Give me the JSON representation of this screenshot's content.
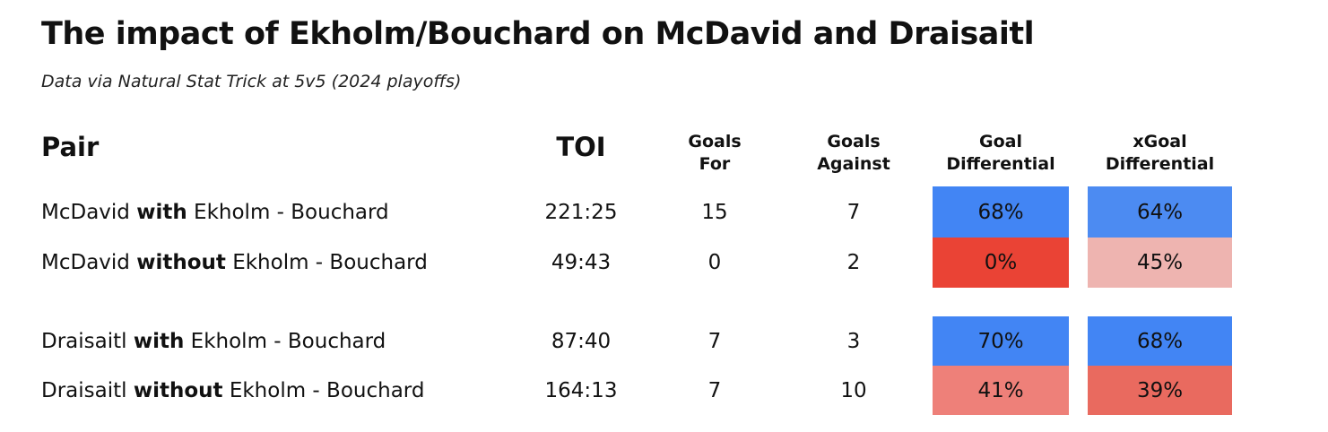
{
  "title": "The impact of Ekholm/Bouchard on McDavid and Draisaitl",
  "subtitle": "Data via Natural Stat Trick at 5v5 (2024 playoffs)",
  "chart_data": {
    "type": "table",
    "columns": [
      "Pair",
      "TOI",
      "Goals For",
      "Goals Against",
      "Goal Differential",
      "xGoal Differential"
    ],
    "column_headers": {
      "pair": "Pair",
      "toi": "TOI",
      "gf": [
        "Goals",
        "For"
      ],
      "ga": [
        "Goals",
        "Against"
      ],
      "gd": [
        "Goal",
        "Differential"
      ],
      "xgd": [
        "xGoal",
        "Differential"
      ]
    },
    "rows": [
      {
        "player": "McDavid",
        "mode": "with",
        "partner": "Ekholm - Bouchard",
        "toi": "221:25",
        "gf": "15",
        "ga": "7",
        "gd": "68%",
        "xgd": "64%",
        "gd_color": "#4285f4",
        "xgd_color": "#4c8bf2"
      },
      {
        "player": "McDavid",
        "mode": "without",
        "partner": "Ekholm - Bouchard",
        "toi": "49:43",
        "gf": "0",
        "ga": "2",
        "gd": "0%",
        "xgd": "45%",
        "gd_color": "#ea4335",
        "xgd_color": "#eeb4b0"
      },
      {
        "player": "Draisaitl",
        "mode": "with",
        "partner": "Ekholm - Bouchard",
        "toi": "87:40",
        "gf": "7",
        "ga": "3",
        "gd": "70%",
        "xgd": "68%",
        "gd_color": "#4285f4",
        "xgd_color": "#4285f4"
      },
      {
        "player": "Draisaitl",
        "mode": "without",
        "partner": "Ekholm - Bouchard",
        "toi": "164:13",
        "gf": "7",
        "ga": "10",
        "gd": "41%",
        "xgd": "39%",
        "gd_color": "#ee8079",
        "xgd_color": "#e96a5f"
      }
    ]
  }
}
